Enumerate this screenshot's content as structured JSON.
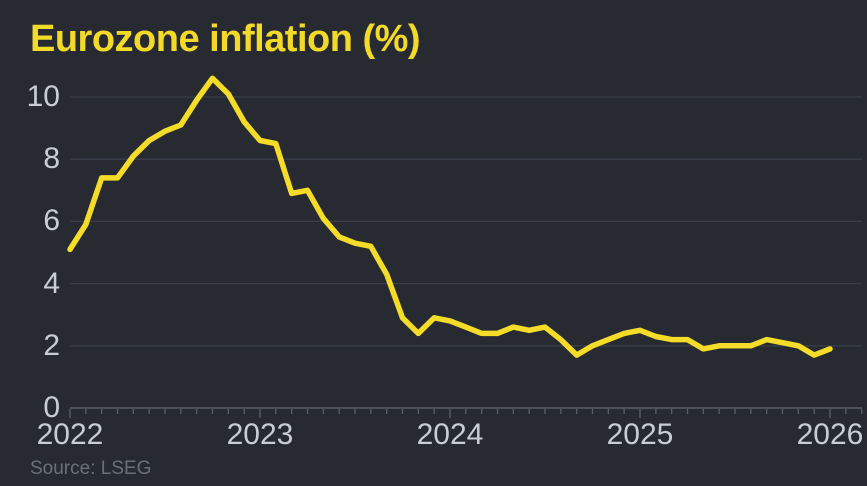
{
  "title": "Eurozone inflation (%)",
  "source": "Source: LSEG",
  "colors": {
    "background": "#272a31",
    "title_yellow": "#f3d928",
    "line_yellow": "#f5dc28",
    "tick_label": "#c9ced6",
    "gridline": "#3a3e48",
    "axis": "#5a5f69",
    "source_text": "#697078"
  },
  "chart_data": {
    "type": "line",
    "title": "Eurozone inflation (%)",
    "xlabel": "",
    "ylabel": "",
    "x_tick_labels": [
      "2022",
      "2023",
      "2024",
      "2025",
      "2026"
    ],
    "y_ticks": [
      0,
      2,
      4,
      6,
      8,
      10
    ],
    "ylim": [
      0,
      11
    ],
    "grid": "horizontal",
    "legend_position": "none",
    "x_start_month": "2022-01",
    "x_interval": "monthly",
    "series": [
      {
        "name": "Eurozone inflation (%)",
        "color": "#f5dc28",
        "values": [
          5.1,
          5.9,
          7.4,
          7.4,
          8.1,
          8.6,
          8.9,
          9.1,
          9.9,
          10.6,
          10.1,
          9.2,
          8.6,
          8.5,
          6.9,
          7.0,
          6.1,
          5.5,
          5.3,
          5.2,
          4.3,
          2.9,
          2.4,
          2.9,
          2.8,
          2.6,
          2.4,
          2.4,
          2.6,
          2.5,
          2.6,
          2.2,
          1.7,
          2.0,
          2.2,
          2.4,
          2.5,
          2.3,
          2.2,
          2.2,
          1.9,
          2.0,
          2.0,
          2.0,
          2.2,
          2.1,
          2.0,
          1.7,
          1.9
        ]
      }
    ]
  }
}
